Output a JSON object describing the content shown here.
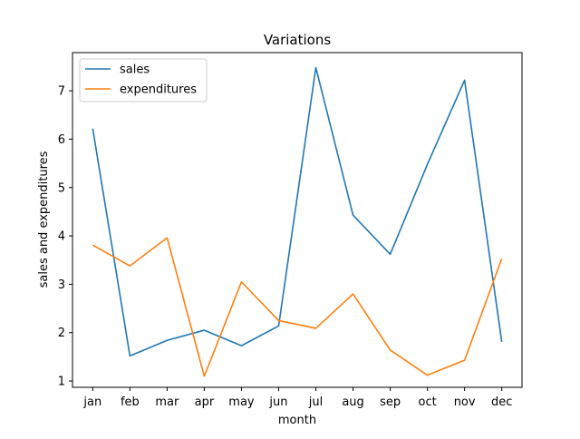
{
  "chart_data": {
    "type": "line",
    "title": "Variations",
    "xlabel": "month",
    "ylabel": "sales and expenditures",
    "categories": [
      "jan",
      "feb",
      "mar",
      "apr",
      "may",
      "jun",
      "jul",
      "aug",
      "sep",
      "oct",
      "nov",
      "dec"
    ],
    "series": [
      {
        "name": "sales",
        "color": "#1f77b4",
        "values": [
          6.22,
          1.52,
          1.84,
          2.05,
          1.73,
          2.14,
          7.48,
          4.43,
          3.62,
          5.48,
          7.22,
          1.81
        ]
      },
      {
        "name": "expenditures",
        "color": "#ff7f0e",
        "values": [
          3.81,
          3.38,
          3.96,
          1.1,
          3.05,
          2.25,
          2.09,
          2.8,
          1.64,
          1.12,
          1.43,
          3.53
        ]
      }
    ],
    "ylim": [
      0.87,
      7.79
    ],
    "yticks": [
      1,
      2,
      3,
      4,
      5,
      6,
      7
    ],
    "grid": false,
    "legend_position": "upper-left"
  }
}
